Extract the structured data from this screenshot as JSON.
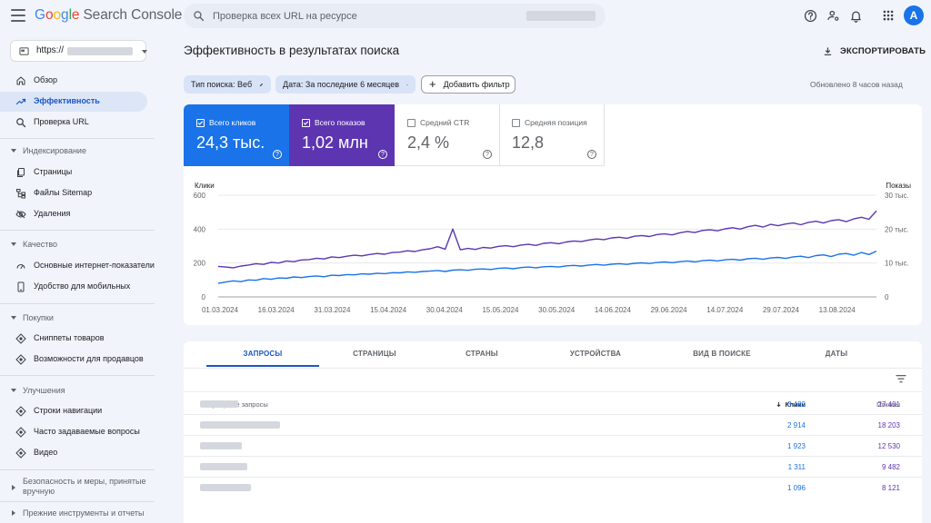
{
  "header": {
    "logo": {
      "google": [
        "G",
        "o",
        "o",
        "g",
        "l",
        "e"
      ],
      "product": "Search Console",
      "colors": [
        "#4285f4",
        "#ea4335",
        "#fbbc05",
        "#4285f4",
        "#34a853",
        "#ea4335"
      ]
    },
    "search_placeholder": "Проверка всех URL на ресурсе",
    "avatar_letter": "A",
    "icons": [
      "help-icon",
      "manage-users-icon",
      "notifications-icon",
      "apps-grid-icon"
    ]
  },
  "property": {
    "prefix": "https://"
  },
  "sidebar": {
    "items": [
      {
        "label": "Обзор",
        "icon": "home-icon"
      },
      {
        "label": "Эффективность",
        "icon": "trend-icon",
        "active": true
      },
      {
        "label": "Проверка URL",
        "icon": "search-icon"
      }
    ],
    "sections": [
      {
        "title": "Индексирование",
        "items": [
          {
            "label": "Страницы",
            "icon": "pages-icon"
          },
          {
            "label": "Файлы Sitemap",
            "icon": "sitemap-icon"
          },
          {
            "label": "Удаления",
            "icon": "removals-icon"
          }
        ]
      },
      {
        "title": "Качество",
        "items": [
          {
            "label": "Основные интернет-показатели",
            "icon": "web-vitals-icon"
          },
          {
            "label": "Удобство для мобильных",
            "icon": "mobile-icon"
          }
        ]
      },
      {
        "title": "Покупки",
        "items": [
          {
            "label": "Сниппеты товаров",
            "icon": "product-icon"
          },
          {
            "label": "Возможности для продавцов",
            "icon": "merchant-icon"
          }
        ]
      },
      {
        "title": "Улучшения",
        "items": [
          {
            "label": "Строки навигации",
            "icon": "breadcrumbs-icon"
          },
          {
            "label": "Часто задаваемые вопросы",
            "icon": "faq-icon"
          },
          {
            "label": "Видео",
            "icon": "video-icon"
          }
        ]
      }
    ],
    "collapsed": [
      {
        "title": "Безопасность и меры, принятые вручную"
      },
      {
        "title": "Прежние инструменты и отчеты"
      }
    ]
  },
  "main": {
    "title": "Эффективность в результатах поиска",
    "export_label": "ЭКСПОРТИРОВАТЬ",
    "filters": [
      {
        "label": "Тип поиска: Веб"
      },
      {
        "label": "Дата: За последние 6 месяцев"
      }
    ],
    "add_filter_label": "Добавить фильтр",
    "updated": "Обновлено 8 часов назад",
    "metrics": [
      {
        "label": "Всего кликов",
        "value": "24,3 тыс.",
        "checked": true,
        "color": "#1a73e8"
      },
      {
        "label": "Всего показов",
        "value": "1,02 млн",
        "checked": true,
        "color": "#5e35b1"
      },
      {
        "label": "Средний CTR",
        "value": "2,4 %",
        "checked": false
      },
      {
        "label": "Средняя позиция",
        "value": "12,8",
        "checked": false
      }
    ],
    "tabs": [
      {
        "label": "ЗАПРОСЫ",
        "active": true
      },
      {
        "label": "СТРАНИЦЫ"
      },
      {
        "label": "СТРАНЫ"
      },
      {
        "label": "УСТРОЙСТВА"
      },
      {
        "label": "ВИД В ПОИСКЕ"
      },
      {
        "label": "ДАТЫ"
      }
    ],
    "table": {
      "columns": {
        "query": "Популярные запросы",
        "clicks": "Клики",
        "impressions": "Показы"
      },
      "rows": [
        {
          "clicks": "3 482",
          "impressions": "27 401"
        },
        {
          "clicks": "2 914",
          "impressions": "18 203"
        },
        {
          "clicks": "1 923",
          "impressions": "12 530"
        },
        {
          "clicks": "1 311",
          "impressions": "9 482"
        },
        {
          "clicks": "1 096",
          "impressions": "8 121"
        }
      ]
    }
  },
  "chart_data": {
    "type": "line",
    "left_axis": {
      "label": "Клики",
      "ticks": [
        "0",
        "200",
        "400",
        "600"
      ],
      "range": [
        0,
        600
      ]
    },
    "right_axis": {
      "label": "Показы",
      "ticks": [
        "0",
        "10 тыс.",
        "20 тыс.",
        "30 тыс."
      ],
      "range": [
        0,
        30000
      ]
    },
    "x_ticks": [
      "01.03.2024",
      "16.03.2024",
      "31.03.2024",
      "15.04.2024",
      "30.04.2024",
      "15.05.2024",
      "30.05.2024",
      "14.06.2024",
      "29.06.2024",
      "14.07.2024",
      "29.07.2024",
      "13.08.2024"
    ],
    "series": [
      {
        "axis": "right",
        "color": "#5e35b1",
        "values": [
          9000,
          8800,
          8600,
          9100,
          9400,
          9800,
          9600,
          10200,
          10000,
          10600,
          10400,
          10900,
          11000,
          11400,
          11200,
          11800,
          11600,
          12000,
          12300,
          12100,
          12500,
          12800,
          12600,
          13100,
          13200,
          13600,
          13400,
          13900,
          14200,
          14800,
          14100,
          20000,
          13900,
          14300,
          14000,
          14600,
          14400,
          14900,
          15100,
          14800,
          15300,
          15500,
          15200,
          15800,
          16000,
          15700,
          16200,
          16500,
          16300,
          16800,
          17100,
          16900,
          17400,
          17600,
          17300,
          17900,
          18100,
          17800,
          18400,
          18600,
          18300,
          18900,
          19300,
          19000,
          19600,
          19800,
          19500,
          20100,
          20400,
          20000,
          20700,
          21100,
          20600,
          21400,
          21000,
          21500,
          21800,
          21300,
          22000,
          22300,
          21800,
          22500,
          22800,
          22200,
          23000,
          23500,
          22900,
          25400
        ]
      },
      {
        "axis": "left",
        "color": "#1a73e8",
        "values": [
          80,
          88,
          95,
          90,
          100,
          98,
          108,
          104,
          112,
          110,
          118,
          114,
          120,
          124,
          119,
          128,
          126,
          132,
          130,
          136,
          134,
          140,
          137,
          143,
          142,
          148,
          145,
          150,
          152,
          156,
          150,
          158,
          160,
          157,
          163,
          165,
          162,
          168,
          171,
          166,
          173,
          176,
          172,
          178,
          180,
          176,
          183,
          186,
          182,
          188,
          191,
          187,
          193,
          196,
          192,
          198,
          201,
          197,
          203,
          206,
          202,
          208,
          212,
          207,
          214,
          217,
          212,
          219,
          222,
          217,
          225,
          228,
          222,
          230,
          233,
          227,
          236,
          240,
          232,
          244,
          248,
          238,
          252,
          256,
          246,
          262,
          250,
          270
        ]
      }
    ]
  }
}
